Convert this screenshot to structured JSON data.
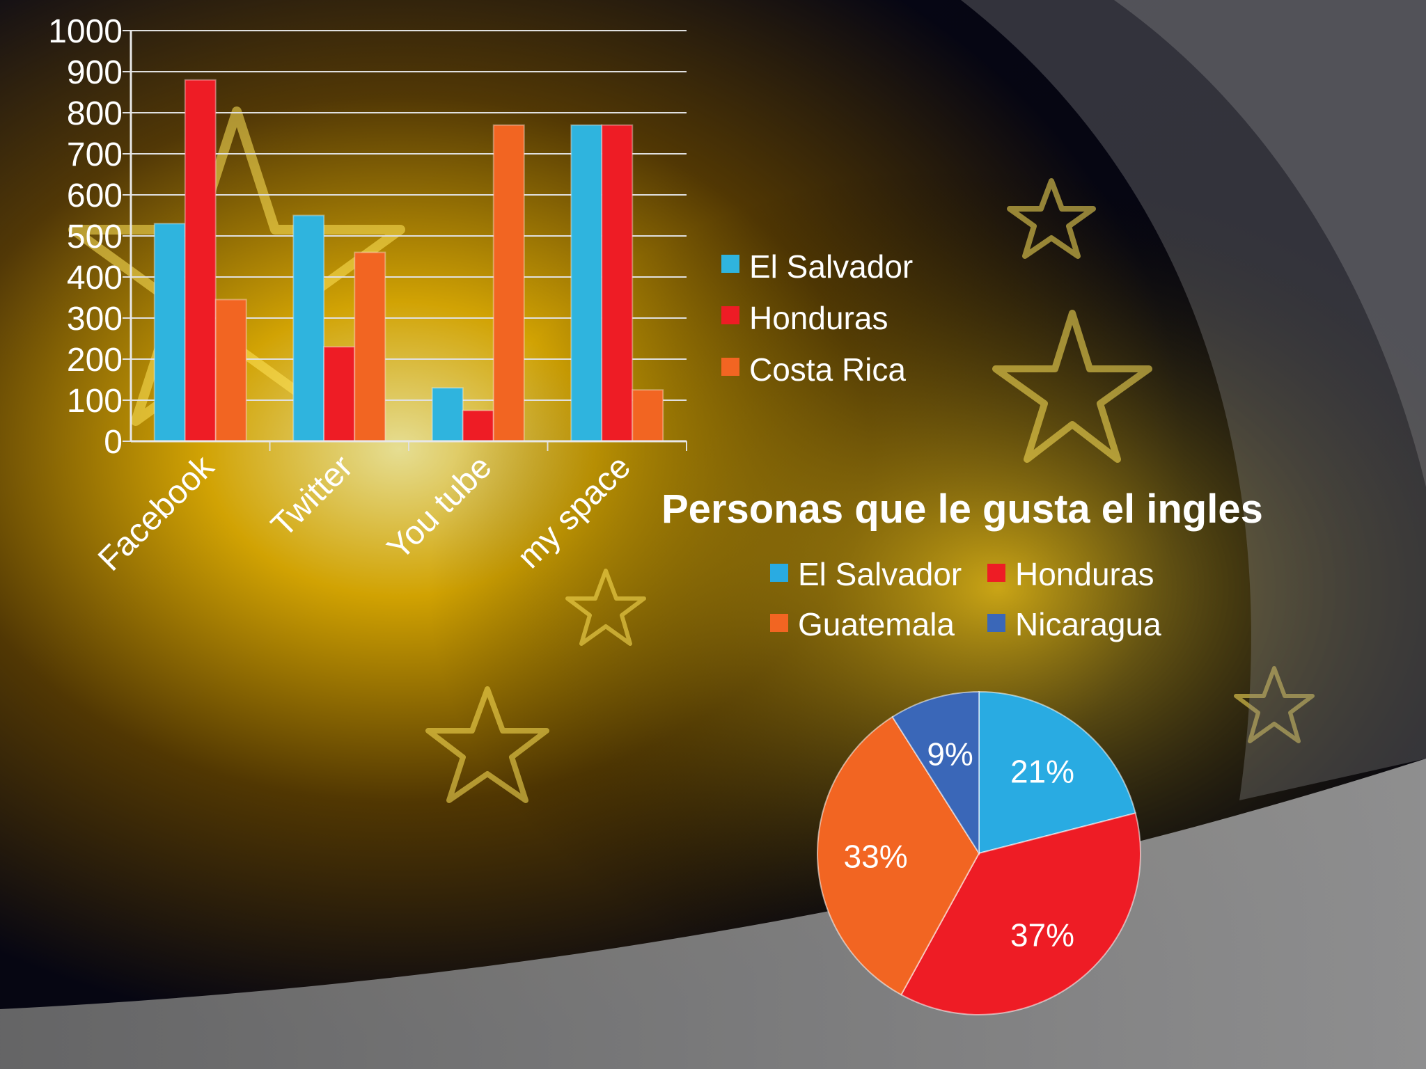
{
  "chart_data": [
    {
      "type": "bar",
      "categories": [
        "Facebook",
        "Twitter",
        "You tube",
        "my space"
      ],
      "series": [
        {
          "name": "El Salvador",
          "values": [
            530,
            550,
            130,
            770
          ],
          "color": "#2fb4de"
        },
        {
          "name": "Honduras",
          "values": [
            880,
            230,
            75,
            770
          ],
          "color": "#ee1c25"
        },
        {
          "name": "Costa Rica",
          "values": [
            345,
            460,
            770,
            125
          ],
          "color": "#f26522"
        }
      ],
      "yticks": [
        "0",
        "100",
        "200",
        "300",
        "400",
        "500",
        "600",
        "700",
        "800",
        "900",
        "1000"
      ],
      "ylim": [
        0,
        1000
      ],
      "grid": true,
      "legend_position": "right"
    },
    {
      "type": "pie",
      "title": "Personas que le gusta el ingles",
      "slices": [
        {
          "name": "El Salvador",
          "value": 21,
          "label": "21%",
          "color": "#29abe2"
        },
        {
          "name": "Honduras",
          "value": 37,
          "label": "37%",
          "color": "#ee1c25"
        },
        {
          "name": "Guatemala",
          "value": 33,
          "label": "33%",
          "color": "#f26522"
        },
        {
          "name": "Nicaragua",
          "value": 9,
          "label": "9%",
          "color": "#3a67b8"
        }
      ],
      "legend_position": "top"
    }
  ]
}
